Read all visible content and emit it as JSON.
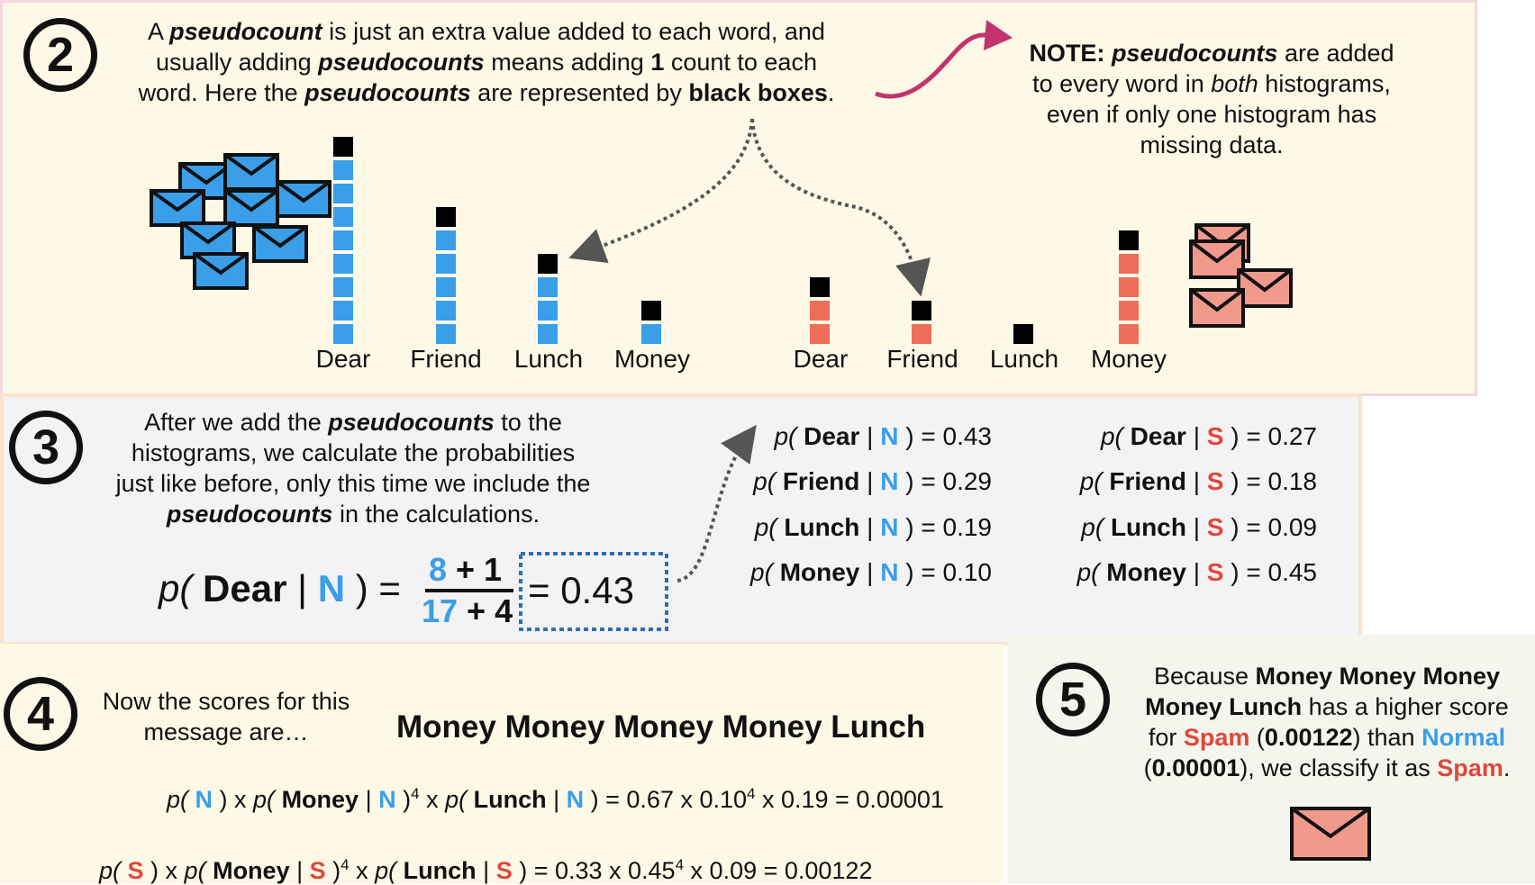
{
  "step2": {
    "number": "2",
    "text": {
      "line1_a": "A ",
      "line1_b": "pseudocount",
      "line1_c": " is just an extra value added to each word, and",
      "line2_a": "usually adding ",
      "line2_b": "pseudocounts",
      "line2_c": " means adding ",
      "line2_d": "1",
      "line2_e": " count to each",
      "line3_a": "word. Here the ",
      "line3_b": "pseudocounts",
      "line3_c": " are represented by ",
      "line3_d": "black boxes",
      "line3_e": "."
    },
    "note": {
      "line1_a": "NOTE: ",
      "line1_b": "pseudocounts",
      "line1_c": " are added",
      "line2_a": "to every word in ",
      "line2_b": "both",
      "line2_c": " histograms,",
      "line3": "even if only one histogram has",
      "line4": "missing data."
    },
    "normal_histogram": {
      "color": "#3a9ee8",
      "categories": [
        "Dear",
        "Friend",
        "Lunch",
        "Money"
      ],
      "counts": [
        8,
        5,
        3,
        1
      ],
      "pseudocount": 1
    },
    "spam_histogram": {
      "color": "#ee6e5a",
      "categories": [
        "Dear",
        "Friend",
        "Lunch",
        "Money"
      ],
      "counts": [
        2,
        1,
        0,
        4
      ],
      "pseudocount": 1
    }
  },
  "step3": {
    "number": "3",
    "text": {
      "line1_a": "After we add the ",
      "line1_b": "pseudocounts",
      "line1_c": " to the",
      "line2": "histograms, we calculate the probabilities",
      "line3": "just like before, only this time we include the",
      "line4_a": "pseudocounts",
      "line4_b": " in the calculations."
    },
    "formula": {
      "p": "p(",
      "word": "Dear",
      "bar": "|",
      "cls": "N",
      "close": ")",
      "eq": "=",
      "num_a": "8",
      "num_b": " + 1",
      "den_a": "17",
      "den_b": " + 4",
      "result": "= 0.43"
    },
    "normal_probs": [
      {
        "word": "Dear",
        "value": "= 0.43"
      },
      {
        "word": "Friend",
        "value": "= 0.29"
      },
      {
        "word": "Lunch",
        "value": "= 0.19"
      },
      {
        "word": "Money",
        "value": "= 0.10"
      }
    ],
    "spam_probs": [
      {
        "word": "Dear",
        "value": "= 0.27"
      },
      {
        "word": "Friend",
        "value": "= 0.18"
      },
      {
        "word": "Lunch",
        "value": "= 0.09"
      },
      {
        "word": "Money",
        "value": "= 0.45"
      }
    ],
    "n": "N",
    "s": "S",
    "p": "p(",
    "bar": "|",
    "close": ")"
  },
  "step4": {
    "number": "4",
    "intro_1": "Now the scores for this",
    "intro_2": "message are…",
    "message": "Money Money Money Money Lunch",
    "normal_eq": {
      "p1": "p(",
      "c1": "N",
      "x1": " ) x ",
      "p2": "p(",
      "w1": "Money",
      "b1": " | ",
      "c2": "N",
      "e1": " )",
      "exp1": "4",
      "x2": " x ",
      "p3": "p(",
      "w2": "Lunch",
      "b2": " | ",
      "c3": "N",
      "rest": " ) = 0.67 x 0.10",
      "exp2": "4",
      "tail": " x 0.19 = 0.00001"
    },
    "spam_eq": {
      "p1": "p(",
      "c1": "S",
      "x1": " ) x ",
      "p2": "p(",
      "w1": "Money",
      "b1": " | ",
      "c2": "S",
      "e1": " )",
      "exp1": "4",
      "x2": " x ",
      "p3": "p(",
      "w2": "Lunch",
      "b2": " | ",
      "c3": "S",
      "rest": " ) = 0.33 x 0.45",
      "exp2": "4",
      "tail": " x 0.09 = 0.00122"
    }
  },
  "step5": {
    "number": "5",
    "line1_a": "Because ",
    "line1_b": "Money Money Money",
    "line2_a": "Money Lunch",
    "line2_b": " has a higher score",
    "line3_a": "for ",
    "line3_b": "Spam",
    "line3_c": " (",
    "line3_d": "0.00122",
    "line3_e": ") than ",
    "line3_f": "Normal",
    "line4_a": "(",
    "line4_b": "0.00001",
    "line4_c": "), we classify it as ",
    "line4_d": "Spam",
    "line4_e": "."
  },
  "colors": {
    "normal": "#3a9ee8",
    "spam": "#ee6e5a",
    "arrow_pink": "#c2336f"
  },
  "icons": [
    "envelope-icon",
    "curved-arrow-icon",
    "dotted-arrow-icon"
  ]
}
